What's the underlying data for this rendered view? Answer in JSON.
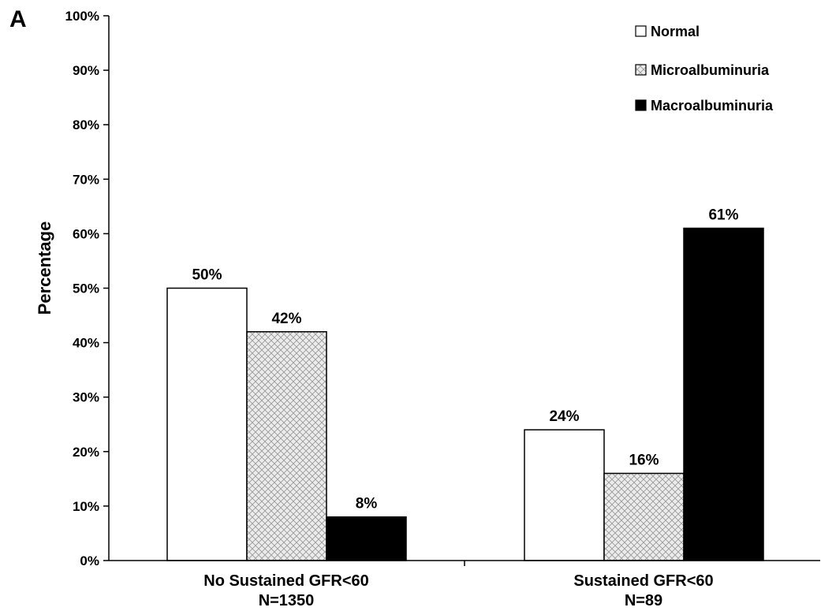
{
  "panel_letter": "A",
  "colors": {
    "normal": "#ffffff",
    "microalbuminuria": "#e0e0e0",
    "macroalbuminuria": "#000000",
    "axis": "#000000"
  },
  "chart_data": {
    "type": "bar",
    "title": "",
    "xlabel": "",
    "ylabel": "Percentage",
    "ylim": [
      0,
      100
    ],
    "y_ticks": [
      "0%",
      "10%",
      "20%",
      "30%",
      "40%",
      "50%",
      "60%",
      "70%",
      "80%",
      "90%",
      "100%"
    ],
    "categories": [
      {
        "line1": "No Sustained GFR<60",
        "line2": "N=1350"
      },
      {
        "line1": "Sustained GFR<60",
        "line2": "N=89"
      }
    ],
    "series": [
      {
        "name": "Normal",
        "key": "normal",
        "values": [
          50,
          24
        ],
        "labels": [
          "50%",
          "24%"
        ]
      },
      {
        "name": "Microalbuminuria",
        "key": "microalbuminuria",
        "values": [
          42,
          16
        ],
        "labels": [
          "42%",
          "16%"
        ]
      },
      {
        "name": "Macroalbuminuria",
        "key": "macroalbuminuria",
        "values": [
          8,
          61
        ],
        "labels": [
          "8%",
          "61%"
        ]
      }
    ],
    "legend_position": "top-right",
    "grid": false
  }
}
